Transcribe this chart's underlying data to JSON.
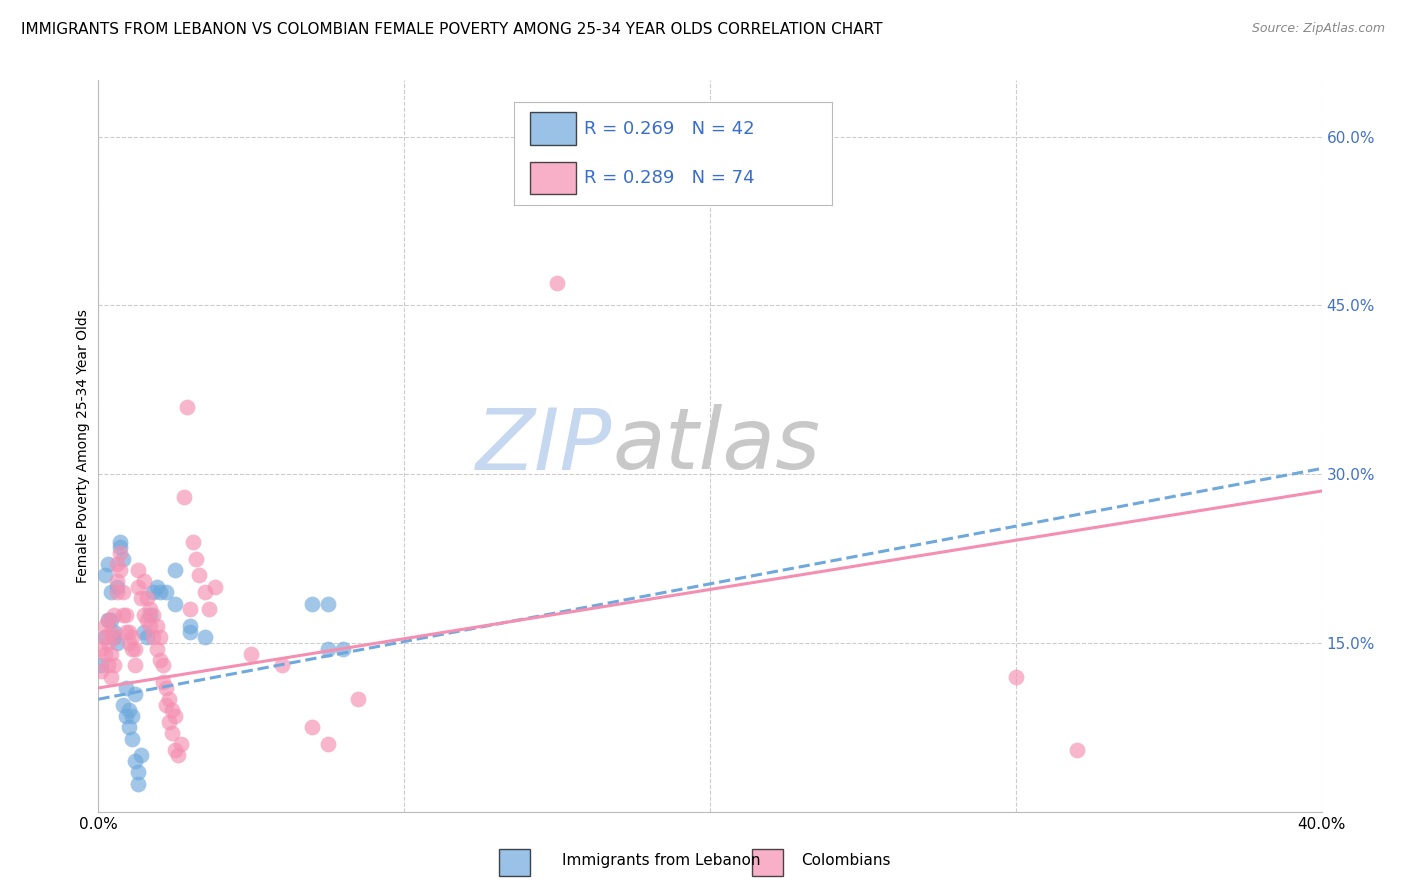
{
  "title": "IMMIGRANTS FROM LEBANON VS COLOMBIAN FEMALE POVERTY AMONG 25-34 YEAR OLDS CORRELATION CHART",
  "source": "Source: ZipAtlas.com",
  "ylabel": "Female Poverty Among 25-34 Year Olds",
  "x_min": 0.0,
  "x_max": 0.4,
  "y_min": 0.0,
  "y_max": 0.65,
  "x_tick_positions": [
    0.0,
    0.1,
    0.2,
    0.3,
    0.4
  ],
  "x_tick_labels": [
    "0.0%",
    "",
    "",
    "",
    "40.0%"
  ],
  "y_tick_positions": [
    0.0,
    0.15,
    0.3,
    0.45,
    0.6
  ],
  "y_tick_labels_right": [
    "",
    "15.0%",
    "30.0%",
    "45.0%",
    "60.0%"
  ],
  "grid_color": "#cccccc",
  "background_color": "#ffffff",
  "watermark_text1": "ZIP",
  "watermark_text2": "atlas",
  "watermark_color1": "#c5d8f0",
  "watermark_color2": "#c8c8c8",
  "legend_R1": "R = 0.269",
  "legend_N1": "N = 42",
  "legend_R2": "R = 0.289",
  "legend_N2": "N = 74",
  "series1_color": "#6fa8dc",
  "series2_color": "#f48fb1",
  "series1_label": "Immigrants from Lebanon",
  "series2_label": "Colombians",
  "series1_points": [
    [
      0.001,
      0.13
    ],
    [
      0.002,
      0.155
    ],
    [
      0.002,
      0.21
    ],
    [
      0.003,
      0.22
    ],
    [
      0.003,
      0.17
    ],
    [
      0.004,
      0.195
    ],
    [
      0.004,
      0.17
    ],
    [
      0.005,
      0.16
    ],
    [
      0.005,
      0.155
    ],
    [
      0.006,
      0.15
    ],
    [
      0.006,
      0.2
    ],
    [
      0.007,
      0.235
    ],
    [
      0.007,
      0.24
    ],
    [
      0.008,
      0.225
    ],
    [
      0.008,
      0.095
    ],
    [
      0.009,
      0.085
    ],
    [
      0.009,
      0.11
    ],
    [
      0.01,
      0.09
    ],
    [
      0.01,
      0.075
    ],
    [
      0.011,
      0.085
    ],
    [
      0.011,
      0.065
    ],
    [
      0.012,
      0.105
    ],
    [
      0.012,
      0.045
    ],
    [
      0.013,
      0.035
    ],
    [
      0.013,
      0.025
    ],
    [
      0.014,
      0.05
    ],
    [
      0.015,
      0.16
    ],
    [
      0.016,
      0.155
    ],
    [
      0.017,
      0.175
    ],
    [
      0.018,
      0.195
    ],
    [
      0.019,
      0.2
    ],
    [
      0.02,
      0.195
    ],
    [
      0.022,
      0.195
    ],
    [
      0.025,
      0.215
    ],
    [
      0.025,
      0.185
    ],
    [
      0.03,
      0.165
    ],
    [
      0.03,
      0.16
    ],
    [
      0.035,
      0.155
    ],
    [
      0.07,
      0.185
    ],
    [
      0.075,
      0.185
    ],
    [
      0.075,
      0.145
    ],
    [
      0.08,
      0.145
    ]
  ],
  "series2_points": [
    [
      0.001,
      0.125
    ],
    [
      0.001,
      0.145
    ],
    [
      0.002,
      0.14
    ],
    [
      0.002,
      0.155
    ],
    [
      0.002,
      0.165
    ],
    [
      0.003,
      0.13
    ],
    [
      0.003,
      0.15
    ],
    [
      0.003,
      0.17
    ],
    [
      0.004,
      0.12
    ],
    [
      0.004,
      0.14
    ],
    [
      0.004,
      0.16
    ],
    [
      0.005,
      0.13
    ],
    [
      0.005,
      0.155
    ],
    [
      0.005,
      0.175
    ],
    [
      0.006,
      0.195
    ],
    [
      0.006,
      0.205
    ],
    [
      0.006,
      0.22
    ],
    [
      0.007,
      0.215
    ],
    [
      0.007,
      0.23
    ],
    [
      0.008,
      0.175
    ],
    [
      0.008,
      0.195
    ],
    [
      0.009,
      0.16
    ],
    [
      0.009,
      0.175
    ],
    [
      0.01,
      0.15
    ],
    [
      0.01,
      0.16
    ],
    [
      0.011,
      0.145
    ],
    [
      0.011,
      0.155
    ],
    [
      0.012,
      0.13
    ],
    [
      0.012,
      0.145
    ],
    [
      0.013,
      0.2
    ],
    [
      0.013,
      0.215
    ],
    [
      0.014,
      0.19
    ],
    [
      0.015,
      0.175
    ],
    [
      0.015,
      0.205
    ],
    [
      0.016,
      0.17
    ],
    [
      0.016,
      0.19
    ],
    [
      0.017,
      0.165
    ],
    [
      0.017,
      0.18
    ],
    [
      0.018,
      0.155
    ],
    [
      0.018,
      0.175
    ],
    [
      0.019,
      0.145
    ],
    [
      0.019,
      0.165
    ],
    [
      0.02,
      0.135
    ],
    [
      0.02,
      0.155
    ],
    [
      0.021,
      0.115
    ],
    [
      0.021,
      0.13
    ],
    [
      0.022,
      0.11
    ],
    [
      0.022,
      0.095
    ],
    [
      0.023,
      0.1
    ],
    [
      0.023,
      0.08
    ],
    [
      0.024,
      0.09
    ],
    [
      0.024,
      0.07
    ],
    [
      0.025,
      0.085
    ],
    [
      0.025,
      0.055
    ],
    [
      0.026,
      0.05
    ],
    [
      0.027,
      0.06
    ],
    [
      0.028,
      0.28
    ],
    [
      0.029,
      0.36
    ],
    [
      0.03,
      0.18
    ],
    [
      0.031,
      0.24
    ],
    [
      0.032,
      0.225
    ],
    [
      0.033,
      0.21
    ],
    [
      0.035,
      0.195
    ],
    [
      0.036,
      0.18
    ],
    [
      0.038,
      0.2
    ],
    [
      0.05,
      0.14
    ],
    [
      0.06,
      0.13
    ],
    [
      0.07,
      0.075
    ],
    [
      0.075,
      0.06
    ],
    [
      0.085,
      0.1
    ],
    [
      0.15,
      0.47
    ],
    [
      0.21,
      0.62
    ],
    [
      0.3,
      0.12
    ],
    [
      0.32,
      0.055
    ]
  ],
  "trendline1_x": [
    0.0,
    0.4
  ],
  "trendline1_y": [
    0.1,
    0.305
  ],
  "trendline2_x": [
    0.0,
    0.4
  ],
  "trendline2_y": [
    0.11,
    0.285
  ],
  "title_fontsize": 11,
  "axis_label_fontsize": 10,
  "tick_fontsize": 11,
  "legend_fontsize": 13,
  "legend_color": "#3a6ecc",
  "right_tick_color": "#4472c4"
}
